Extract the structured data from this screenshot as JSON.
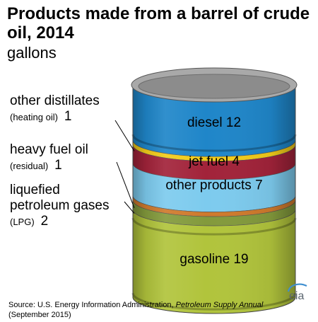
{
  "title": "Products made from a barrel of crude oil, 2014",
  "subtitle": "gallons",
  "colors": {
    "diesel": "#1f86c9",
    "heating_oil": "#f2cc1a",
    "jet_fuel": "#a2233a",
    "other_products": "#7dcbee",
    "heavy_fuel_oil": "#cf7a2c",
    "lpg": "#839a3c",
    "gasoline": "#b1c43c",
    "rim": "#a9a9a9"
  },
  "chart_data": {
    "type": "stacked barrel",
    "unit": "gallons",
    "segments": [
      {
        "name": "diesel",
        "value": 12,
        "color": "#1f86c9"
      },
      {
        "name": "heating oil",
        "value": 1,
        "color": "#f2cc1a"
      },
      {
        "name": "jet fuel",
        "value": 4,
        "color": "#a2233a"
      },
      {
        "name": "other products",
        "value": 7,
        "color": "#7dcbee"
      },
      {
        "name": "residual",
        "value": 1,
        "color": "#cf7a2c"
      },
      {
        "name": "LPG",
        "value": 2,
        "color": "#839a3c"
      },
      {
        "name": "gasoline",
        "value": 19,
        "color": "#b1c43c"
      }
    ]
  },
  "barrel_labels": {
    "diesel": "diesel 12",
    "jet_fuel": "jet fuel 4",
    "other_products": "other products 7",
    "gasoline": "gasoline 19"
  },
  "callouts": {
    "other_distillates": {
      "line1": "other distillates",
      "sub": "(heating oil)",
      "value": "1"
    },
    "heavy_fuel_oil": {
      "line1": "heavy fuel oil",
      "sub": "(residual)",
      "value": "1"
    },
    "lpg": {
      "line1": "liquefied",
      "line2": "petroleum gases",
      "sub": "(LPG)",
      "value": "2"
    }
  },
  "source": {
    "prefix": "Source: U.S. Energy Information Administration, ",
    "publication": "Petroleum Supply Annual",
    "date": "(September 2015)"
  },
  "logo": "eia"
}
